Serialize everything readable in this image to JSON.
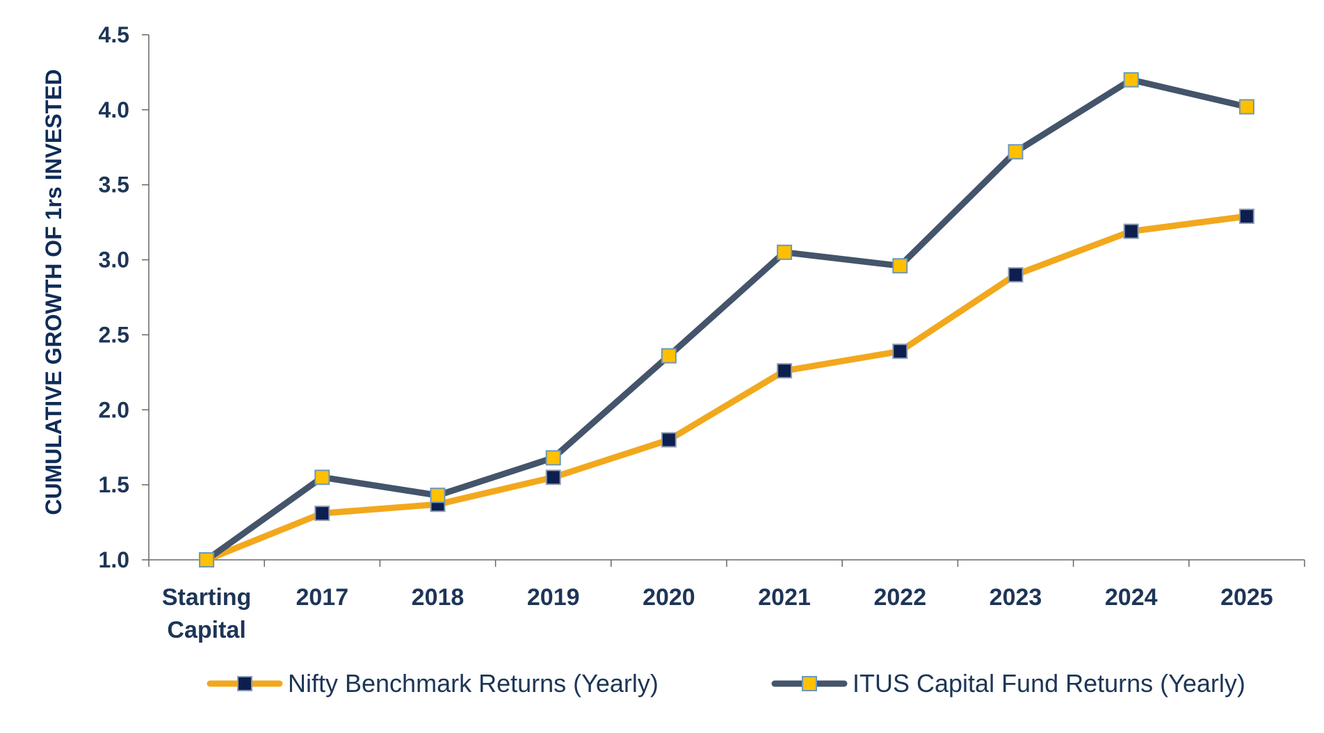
{
  "chart_data": {
    "type": "line",
    "title": "",
    "xlabel": "",
    "ylabel": "CUMULATIVE GROWTH OF 1rs INVESTED",
    "categories": [
      "Starting Capital",
      "2017",
      "2018",
      "2019",
      "2020",
      "2021",
      "2022",
      "2023",
      "2024",
      "2025"
    ],
    "ylim": [
      1.0,
      4.5
    ],
    "yticks": [
      "1.0",
      "1.5",
      "2.0",
      "2.5",
      "3.0",
      "3.5",
      "4.0",
      "4.5"
    ],
    "grid": false,
    "legend_position": "bottom",
    "series": [
      {
        "name": "Nifty Benchmark Returns (Yearly)",
        "values": [
          1.0,
          1.31,
          1.37,
          1.55,
          1.8,
          2.26,
          2.39,
          2.9,
          3.19,
          3.29
        ],
        "line_color": "#f2a81d",
        "marker_fill": "#0d1f4f",
        "marker_stroke": "#8c9bb0"
      },
      {
        "name": "ITUS Capital Fund Returns (Yearly)",
        "values": [
          1.0,
          1.55,
          1.43,
          1.68,
          2.36,
          3.05,
          2.96,
          3.72,
          4.2,
          4.02
        ],
        "line_color": "#44546a",
        "marker_fill": "#ffc000",
        "marker_stroke": "#6f97b8"
      }
    ],
    "colors": {
      "axis": "#666666",
      "text": "#1d3557"
    }
  }
}
